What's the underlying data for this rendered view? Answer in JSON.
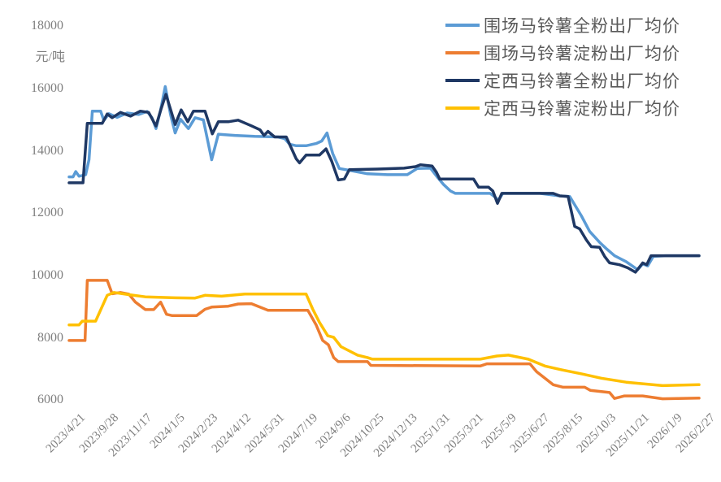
{
  "chart_data": {
    "type": "line",
    "title": "",
    "ylabel": "元/吨",
    "xlabel": "",
    "grid": false,
    "legend_position": "top-right",
    "y_min": 6000,
    "y_max": 18000,
    "y_ticks": [
      18000,
      16000,
      14000,
      12000,
      10000,
      8000,
      6000
    ],
    "x_labels": [
      "2023/4/21",
      "2023/9/28",
      "2023/11/17",
      "2024/1/5",
      "2024/2/23",
      "2024/4/12",
      "2024/5/31",
      "2024/7/19",
      "2024/9/6",
      "2024/10/25",
      "2024/12/13",
      "2025/1/31",
      "2025/3/21",
      "2025/5/9",
      "2025/6/27",
      "2025/8/15",
      "2025/10/3",
      "2025/11/21",
      "2026/1/9",
      "2026/2/27"
    ],
    "x_unit": "label-index (0 = first label, 19 = last label)",
    "axis_text_color": "#7f7f7f",
    "legend_text_color": "#595959",
    "line_width": 3.5,
    "series": [
      {
        "name": "围场马铃薯全粉出厂均价",
        "color": "#5B9BD5",
        "points": [
          [
            0,
            13150
          ],
          [
            0.12,
            13150
          ],
          [
            0.2,
            13320
          ],
          [
            0.3,
            13170
          ],
          [
            0.5,
            13220
          ],
          [
            0.6,
            13700
          ],
          [
            0.7,
            15260
          ],
          [
            0.95,
            15260
          ],
          [
            1.05,
            14960
          ],
          [
            1.2,
            15180
          ],
          [
            1.45,
            15060
          ],
          [
            1.75,
            15200
          ],
          [
            2.1,
            15150
          ],
          [
            2.35,
            15250
          ],
          [
            2.5,
            15050
          ],
          [
            2.62,
            14700
          ],
          [
            2.76,
            15300
          ],
          [
            2.9,
            16050
          ],
          [
            3.06,
            15150
          ],
          [
            3.2,
            14560
          ],
          [
            3.36,
            15000
          ],
          [
            3.6,
            14700
          ],
          [
            3.8,
            15050
          ],
          [
            4.05,
            14980
          ],
          [
            4.3,
            13700
          ],
          [
            4.5,
            14520
          ],
          [
            5.0,
            14480
          ],
          [
            5.6,
            14450
          ],
          [
            6.3,
            14430
          ],
          [
            6.5,
            14380
          ],
          [
            6.65,
            14200
          ],
          [
            6.85,
            14150
          ],
          [
            7.15,
            14150
          ],
          [
            7.45,
            14220
          ],
          [
            7.62,
            14300
          ],
          [
            7.78,
            14560
          ],
          [
            7.95,
            13900
          ],
          [
            8.15,
            13420
          ],
          [
            8.5,
            13350
          ],
          [
            9.0,
            13250
          ],
          [
            9.6,
            13220
          ],
          [
            10.2,
            13220
          ],
          [
            10.5,
            13420
          ],
          [
            10.9,
            13430
          ],
          [
            11.1,
            13150
          ],
          [
            11.3,
            12900
          ],
          [
            11.5,
            12700
          ],
          [
            11.65,
            12620
          ],
          [
            12.7,
            12620
          ],
          [
            12.85,
            12500
          ],
          [
            12.95,
            12400
          ],
          [
            13.08,
            12620
          ],
          [
            14.2,
            12620
          ],
          [
            14.8,
            12540
          ],
          [
            15.1,
            12520
          ],
          [
            15.45,
            11900
          ],
          [
            15.7,
            11400
          ],
          [
            16.0,
            11050
          ],
          [
            16.2,
            10850
          ],
          [
            16.45,
            10620
          ],
          [
            16.8,
            10430
          ],
          [
            17.0,
            10280
          ],
          [
            17.15,
            10170
          ],
          [
            17.3,
            10360
          ],
          [
            17.45,
            10290
          ],
          [
            17.62,
            10600
          ],
          [
            18.0,
            10620
          ],
          [
            19,
            10620
          ]
        ]
      },
      {
        "name": "围场马铃薯淀粉出厂均价",
        "color": "#ED7D31",
        "points": [
          [
            0,
            7900
          ],
          [
            0.48,
            7900
          ],
          [
            0.55,
            9830
          ],
          [
            1.15,
            9830
          ],
          [
            1.3,
            9400
          ],
          [
            1.55,
            9440
          ],
          [
            1.8,
            9390
          ],
          [
            2.0,
            9130
          ],
          [
            2.3,
            8890
          ],
          [
            2.55,
            8890
          ],
          [
            2.76,
            9130
          ],
          [
            2.94,
            8740
          ],
          [
            3.1,
            8700
          ],
          [
            3.85,
            8700
          ],
          [
            4.1,
            8900
          ],
          [
            4.3,
            8970
          ],
          [
            4.8,
            9000
          ],
          [
            5.1,
            9070
          ],
          [
            5.5,
            9080
          ],
          [
            6.0,
            8870
          ],
          [
            7.2,
            8870
          ],
          [
            7.45,
            8400
          ],
          [
            7.65,
            7900
          ],
          [
            7.82,
            7760
          ],
          [
            7.98,
            7350
          ],
          [
            8.12,
            7220
          ],
          [
            9.0,
            7220
          ],
          [
            9.1,
            7100
          ],
          [
            12.4,
            7080
          ],
          [
            12.6,
            7150
          ],
          [
            13.9,
            7150
          ],
          [
            14.1,
            6900
          ],
          [
            14.6,
            6480
          ],
          [
            14.9,
            6400
          ],
          [
            15.55,
            6400
          ],
          [
            15.72,
            6300
          ],
          [
            16.3,
            6230
          ],
          [
            16.45,
            6040
          ],
          [
            16.75,
            6120
          ],
          [
            17.3,
            6120
          ],
          [
            17.9,
            6030
          ],
          [
            19,
            6050
          ]
        ]
      },
      {
        "name": "定西马铃薯全粉出厂均价",
        "color": "#1F3864",
        "points": [
          [
            0,
            12960
          ],
          [
            0.42,
            12960
          ],
          [
            0.55,
            14870
          ],
          [
            1.0,
            14870
          ],
          [
            1.15,
            15170
          ],
          [
            1.3,
            15050
          ],
          [
            1.55,
            15220
          ],
          [
            1.85,
            15100
          ],
          [
            2.15,
            15260
          ],
          [
            2.4,
            15220
          ],
          [
            2.62,
            14780
          ],
          [
            2.78,
            15350
          ],
          [
            2.92,
            15800
          ],
          [
            3.08,
            15250
          ],
          [
            3.2,
            14830
          ],
          [
            3.38,
            15300
          ],
          [
            3.58,
            14920
          ],
          [
            3.75,
            15260
          ],
          [
            4.1,
            15260
          ],
          [
            4.32,
            14530
          ],
          [
            4.5,
            14920
          ],
          [
            4.8,
            14920
          ],
          [
            5.1,
            14970
          ],
          [
            5.5,
            14790
          ],
          [
            5.76,
            14660
          ],
          [
            5.88,
            14480
          ],
          [
            6.0,
            14610
          ],
          [
            6.2,
            14430
          ],
          [
            6.55,
            14430
          ],
          [
            6.85,
            13730
          ],
          [
            6.95,
            13600
          ],
          [
            7.15,
            13850
          ],
          [
            7.55,
            13850
          ],
          [
            7.75,
            14050
          ],
          [
            7.92,
            13650
          ],
          [
            8.12,
            13050
          ],
          [
            8.3,
            13080
          ],
          [
            8.45,
            13380
          ],
          [
            9.3,
            13400
          ],
          [
            10.1,
            13430
          ],
          [
            10.45,
            13480
          ],
          [
            10.6,
            13540
          ],
          [
            10.95,
            13500
          ],
          [
            11.08,
            13300
          ],
          [
            11.18,
            13080
          ],
          [
            12.2,
            13080
          ],
          [
            12.35,
            12820
          ],
          [
            12.65,
            12820
          ],
          [
            12.78,
            12700
          ],
          [
            12.92,
            12300
          ],
          [
            13.05,
            12620
          ],
          [
            14.6,
            12620
          ],
          [
            14.8,
            12540
          ],
          [
            15.05,
            12520
          ],
          [
            15.25,
            11560
          ],
          [
            15.4,
            11480
          ],
          [
            15.6,
            11130
          ],
          [
            15.75,
            10910
          ],
          [
            16.0,
            10890
          ],
          [
            16.15,
            10600
          ],
          [
            16.3,
            10390
          ],
          [
            16.6,
            10330
          ],
          [
            16.85,
            10230
          ],
          [
            17.08,
            10090
          ],
          [
            17.3,
            10390
          ],
          [
            17.42,
            10330
          ],
          [
            17.55,
            10620
          ],
          [
            19,
            10620
          ]
        ]
      },
      {
        "name": "定西马铃薯淀粉出厂均价",
        "color": "#FFC000",
        "points": [
          [
            0,
            8400
          ],
          [
            0.3,
            8400
          ],
          [
            0.4,
            8520
          ],
          [
            0.8,
            8520
          ],
          [
            1.15,
            9350
          ],
          [
            1.35,
            9440
          ],
          [
            1.8,
            9370
          ],
          [
            2.3,
            9300
          ],
          [
            3.2,
            9270
          ],
          [
            3.8,
            9260
          ],
          [
            4.1,
            9350
          ],
          [
            4.6,
            9320
          ],
          [
            5.3,
            9390
          ],
          [
            7.15,
            9390
          ],
          [
            7.35,
            8900
          ],
          [
            7.55,
            8480
          ],
          [
            7.8,
            8050
          ],
          [
            7.98,
            8000
          ],
          [
            8.2,
            7700
          ],
          [
            8.7,
            7430
          ],
          [
            9.0,
            7350
          ],
          [
            9.15,
            7300
          ],
          [
            12.4,
            7300
          ],
          [
            12.9,
            7400
          ],
          [
            13.25,
            7430
          ],
          [
            13.85,
            7300
          ],
          [
            14.35,
            7080
          ],
          [
            14.85,
            6960
          ],
          [
            15.5,
            6820
          ],
          [
            16.05,
            6690
          ],
          [
            16.8,
            6560
          ],
          [
            17.6,
            6480
          ],
          [
            17.9,
            6450
          ],
          [
            19,
            6480
          ]
        ]
      }
    ]
  }
}
